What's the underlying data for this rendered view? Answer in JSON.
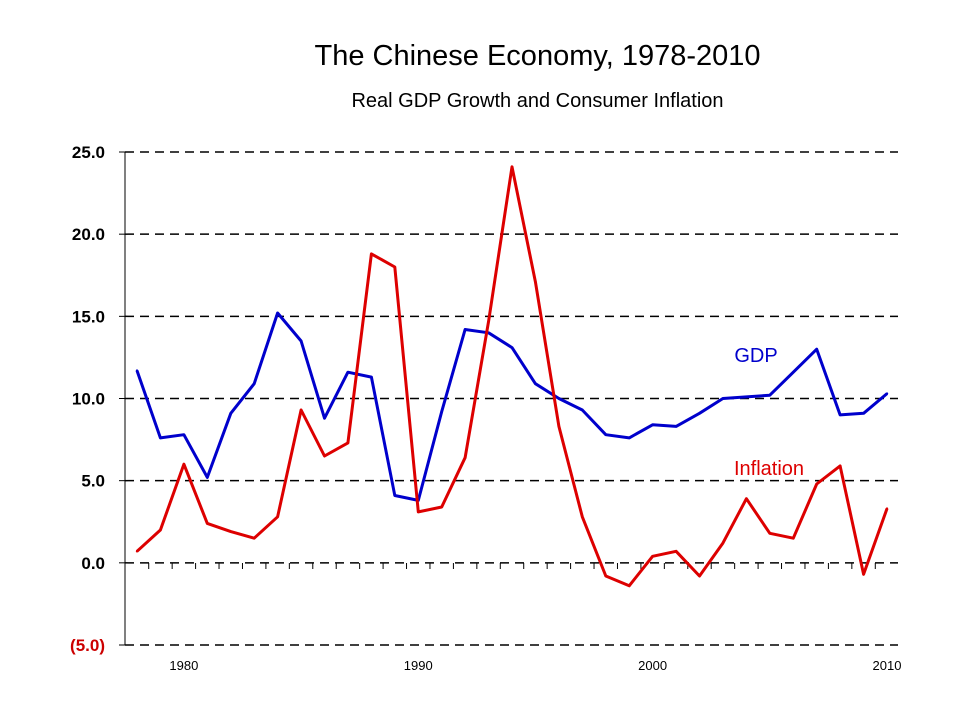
{
  "chart_data": {
    "type": "line",
    "title": "The Chinese Economy, 1978-2010",
    "subtitle": "Real GDP Growth and Consumer Inflation",
    "xlabel": "",
    "ylabel": "",
    "xlim": [
      1978,
      2010
    ],
    "ylim": [
      -5,
      25
    ],
    "grid": true,
    "y_ticks": [
      {
        "value": 25,
        "label": "25.0",
        "color": "#000000"
      },
      {
        "value": 20,
        "label": "20.0",
        "color": "#000000"
      },
      {
        "value": 15,
        "label": "15.0",
        "color": "#000000"
      },
      {
        "value": 10,
        "label": "10.0",
        "color": "#000000"
      },
      {
        "value": 5,
        "label": "5.0",
        "color": "#000000"
      },
      {
        "value": 0,
        "label": "0.0",
        "color": "#000000"
      },
      {
        "value": -5,
        "label": "(5.0)",
        "color": "#cc0000"
      }
    ],
    "x_tick_labels": [
      {
        "value": 1980,
        "label": "1980"
      },
      {
        "value": 1990,
        "label": "1990"
      },
      {
        "value": 2000,
        "label": "2000"
      },
      {
        "value": 2010,
        "label": "2010"
      }
    ],
    "x": [
      1978,
      1979,
      1980,
      1981,
      1982,
      1983,
      1984,
      1985,
      1986,
      1987,
      1988,
      1989,
      1990,
      1991,
      1992,
      1993,
      1994,
      1995,
      1996,
      1997,
      1998,
      1999,
      2000,
      2001,
      2002,
      2003,
      2004,
      2005,
      2006,
      2007,
      2008,
      2009,
      2010
    ],
    "series": [
      {
        "name": "GDP",
        "color": "#0000cc",
        "values": [
          11.7,
          7.6,
          7.8,
          5.2,
          9.1,
          10.9,
          15.2,
          13.5,
          8.8,
          11.6,
          11.3,
          4.1,
          3.8,
          9.2,
          14.2,
          14.0,
          13.1,
          10.9,
          10.0,
          9.3,
          7.8,
          7.6,
          8.4,
          8.3,
          9.1,
          10.0,
          10.1,
          10.2,
          11.6,
          13.0,
          9.0,
          9.1,
          10.3
        ]
      },
      {
        "name": "Inflation",
        "color": "#dd0000",
        "values": [
          0.7,
          2.0,
          6.0,
          2.4,
          1.9,
          1.5,
          2.8,
          9.3,
          6.5,
          7.3,
          18.8,
          18.0,
          3.1,
          3.4,
          6.4,
          14.7,
          24.1,
          17.1,
          8.3,
          2.8,
          -0.8,
          -1.4,
          0.4,
          0.7,
          -0.8,
          1.2,
          3.9,
          1.8,
          1.5,
          4.8,
          5.9,
          -0.7,
          3.3
        ]
      }
    ]
  }
}
